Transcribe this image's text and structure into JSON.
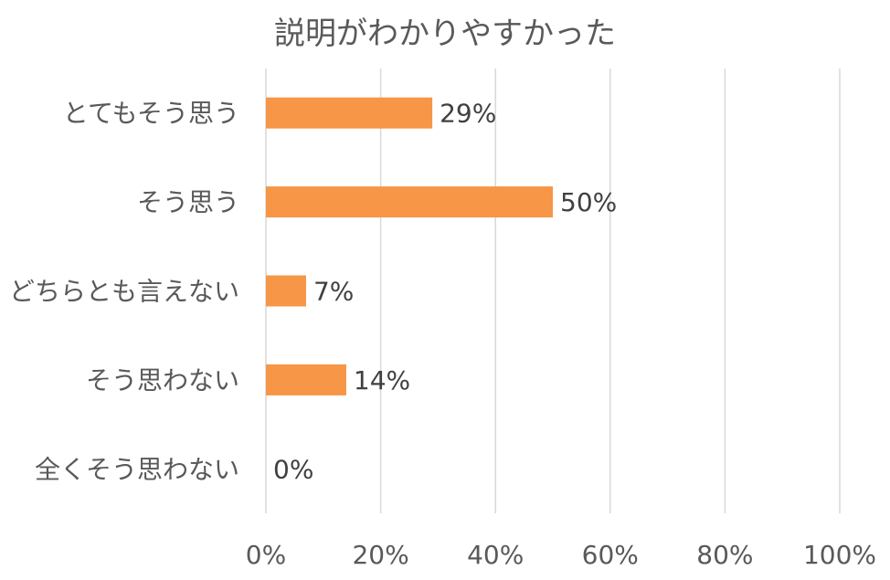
{
  "chart_data": {
    "type": "bar",
    "orientation": "horizontal",
    "title": "説明がわかりやすかった",
    "categories": [
      "とてもそう思う",
      "そう思う",
      "どちらとも言えない",
      "そう思わない",
      "全くそう思わない"
    ],
    "values": [
      29,
      50,
      7,
      14,
      0
    ],
    "data_labels": [
      "29%",
      "50%",
      "7%",
      "14%",
      "0%"
    ],
    "xlim": [
      0,
      100
    ],
    "x_ticks": [
      0,
      20,
      40,
      60,
      80,
      100
    ],
    "x_tick_labels": [
      "0%",
      "20%",
      "40%",
      "60%",
      "80%",
      "100%"
    ],
    "xlabel": "",
    "ylabel": "",
    "grid": true,
    "legend": "none",
    "bar_color": "#F79646"
  }
}
